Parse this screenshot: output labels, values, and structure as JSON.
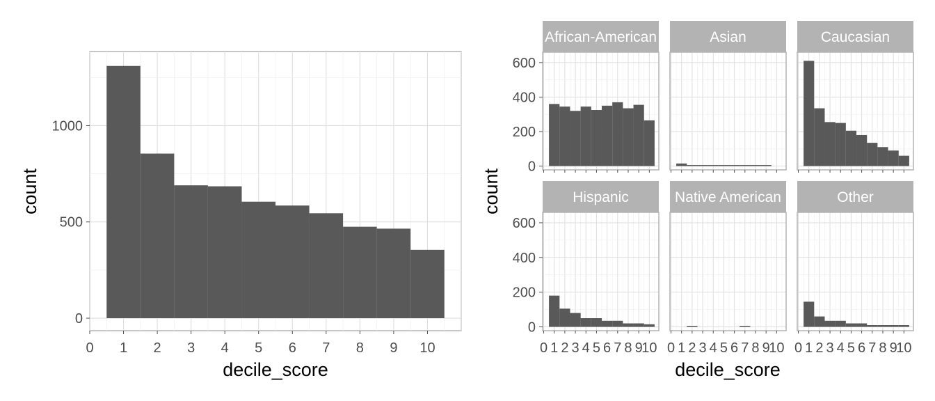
{
  "chart_data": [
    {
      "type": "bar",
      "panel": "overall",
      "xlabel": "decile_score",
      "ylabel": "count",
      "x_ticks": [
        "0",
        "1",
        "2",
        "3",
        "4",
        "5",
        "6",
        "7",
        "8",
        "9",
        "10"
      ],
      "y_ticks": [
        "0",
        "500",
        "1000"
      ],
      "xlim": [
        0,
        11
      ],
      "ylim": [
        -65,
        1385
      ],
      "grid": true,
      "categories": [
        1,
        2,
        3,
        4,
        5,
        6,
        7,
        8,
        9,
        10
      ],
      "values": [
        1310,
        855,
        690,
        685,
        605,
        585,
        545,
        475,
        465,
        355
      ],
      "bar_color": "#595959"
    },
    {
      "type": "bar",
      "panel": "faceted",
      "xlabel": "decile_score",
      "ylabel": "count",
      "x_ticks": [
        "0",
        "1",
        "2",
        "3",
        "4",
        "5",
        "6",
        "7",
        "8",
        "9",
        "10"
      ],
      "y_ticks": [
        "0",
        "200",
        "400",
        "600"
      ],
      "xlim": [
        -0.1,
        10.9
      ],
      "ylim": [
        -22,
        660
      ],
      "grid": true,
      "bar_color": "#595959",
      "strip_color": "#b3b3b3",
      "categories": [
        1,
        2,
        3,
        4,
        5,
        6,
        7,
        8,
        9,
        10
      ],
      "facets": [
        {
          "name": "African-American",
          "values": [
            360,
            345,
            320,
            345,
            325,
            350,
            370,
            335,
            355,
            265
          ]
        },
        {
          "name": "Asian",
          "values": [
            15,
            5,
            3,
            2,
            1,
            1,
            4,
            1,
            2,
            0
          ]
        },
        {
          "name": "Caucasian",
          "values": [
            610,
            335,
            255,
            250,
            205,
            180,
            135,
            110,
            90,
            60
          ]
        },
        {
          "name": "Hispanic",
          "values": [
            180,
            105,
            80,
            50,
            50,
            35,
            35,
            20,
            20,
            15
          ]
        },
        {
          "name": "Native American",
          "values": [
            0,
            2,
            0,
            0,
            0,
            0,
            3,
            0,
            0,
            0
          ]
        },
        {
          "name": "Other",
          "values": [
            145,
            60,
            35,
            35,
            20,
            20,
            10,
            10,
            10,
            10
          ]
        }
      ]
    }
  ]
}
